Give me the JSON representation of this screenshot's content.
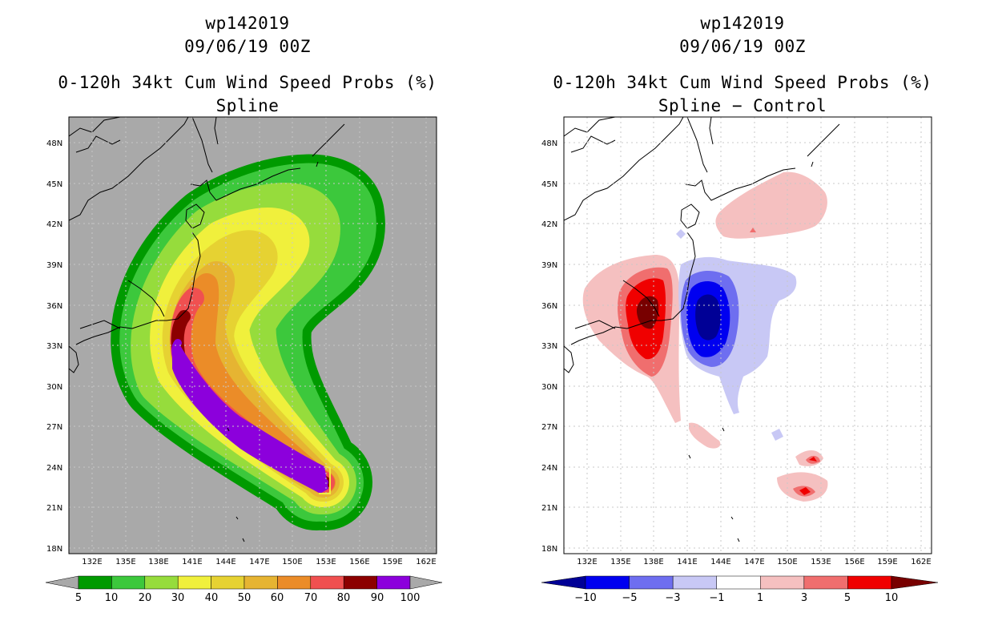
{
  "panels": [
    {
      "storm_id": "wp142019",
      "datetime": "09/06/19 00Z",
      "product": "0-120h 34kt Cum Wind Speed Probs (%)",
      "subtitle": "Spline",
      "colorbar": {
        "labels": [
          "5",
          "10",
          "20",
          "30",
          "40",
          "50",
          "60",
          "70",
          "80",
          "90",
          "100"
        ],
        "colors": [
          "#009a00",
          "#3cc83c",
          "#96dc3c",
          "#f0f03c",
          "#e6d232",
          "#e6b432",
          "#eb8c28",
          "#f05050",
          "#8c0000",
          "#8c00dc"
        ]
      }
    },
    {
      "storm_id": "wp142019",
      "datetime": "09/06/19 00Z",
      "product": "0-120h 34kt Cum Wind Speed Probs (%)",
      "subtitle": "Spline − Control",
      "colorbar": {
        "labels": [
          "−10",
          "−5",
          "−3",
          "−1",
          "1",
          "3",
          "5",
          "10"
        ],
        "colors": [
          "#000096",
          "#0000f0",
          "#6e6ef0",
          "#c8c8f5",
          "#ffffff",
          "#f5c0c0",
          "#f06e6e",
          "#f00000",
          "#780000"
        ]
      }
    }
  ],
  "axes": {
    "lon_ticks": [
      "132E",
      "135E",
      "138E",
      "141E",
      "144E",
      "147E",
      "150E",
      "153E",
      "156E",
      "159E",
      "162E"
    ],
    "lat_ticks": [
      "48N",
      "45N",
      "42N",
      "39N",
      "36N",
      "33N",
      "30N",
      "27N",
      "24N",
      "21N",
      "18N"
    ]
  }
}
